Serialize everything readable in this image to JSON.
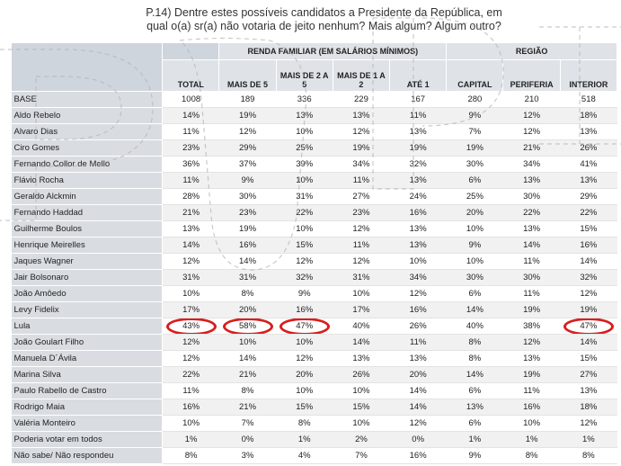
{
  "question": {
    "line1": "P.14) Dentre estes possíveis candidatos a Presidente da República, em",
    "line2": "qual o(a) sr(a) não votaria de jeito nenhum? Mais algum? Algum outro?"
  },
  "headers": {
    "group_income": "RENDA FAMILIAR (EM SALÁRIOS MÍNIMOS)",
    "group_region": "REGIÃO",
    "columns": [
      "TOTAL",
      "MAIS DE 5",
      "MAIS DE 2 A 5",
      "MAIS DE 1 A 2",
      "ATÉ 1",
      "CAPITAL",
      "PERIFERIA",
      "INTERIOR"
    ]
  },
  "rows": [
    {
      "label": "BASE",
      "values": [
        "1008",
        "189",
        "336",
        "229",
        "167",
        "280",
        "210",
        "518"
      ]
    },
    {
      "label": "Aldo Rebelo",
      "values": [
        "14%",
        "19%",
        "13%",
        "13%",
        "11%",
        "9%",
        "12%",
        "18%"
      ]
    },
    {
      "label": "Alvaro Dias",
      "values": [
        "11%",
        "12%",
        "10%",
        "12%",
        "13%",
        "7%",
        "12%",
        "13%"
      ]
    },
    {
      "label": "Ciro Gomes",
      "values": [
        "23%",
        "29%",
        "25%",
        "19%",
        "19%",
        "19%",
        "21%",
        "26%"
      ]
    },
    {
      "label": "Fernando Collor de Mello",
      "values": [
        "36%",
        "37%",
        "39%",
        "34%",
        "32%",
        "30%",
        "34%",
        "41%"
      ]
    },
    {
      "label": "Flávio Rocha",
      "values": [
        "11%",
        "9%",
        "10%",
        "11%",
        "13%",
        "6%",
        "13%",
        "13%"
      ]
    },
    {
      "label": "Geraldo Alckmin",
      "values": [
        "28%",
        "30%",
        "31%",
        "27%",
        "24%",
        "25%",
        "30%",
        "29%"
      ]
    },
    {
      "label": "Fernando Haddad",
      "values": [
        "21%",
        "23%",
        "22%",
        "23%",
        "16%",
        "20%",
        "22%",
        "22%"
      ]
    },
    {
      "label": "Guilherme Boulos",
      "values": [
        "13%",
        "19%",
        "10%",
        "12%",
        "13%",
        "10%",
        "13%",
        "15%"
      ]
    },
    {
      "label": "Henrique Meirelles",
      "values": [
        "14%",
        "16%",
        "15%",
        "11%",
        "13%",
        "9%",
        "14%",
        "16%"
      ]
    },
    {
      "label": "Jaques Wagner",
      "values": [
        "12%",
        "14%",
        "12%",
        "12%",
        "10%",
        "10%",
        "11%",
        "14%"
      ]
    },
    {
      "label": "Jair Bolsonaro",
      "values": [
        "31%",
        "31%",
        "32%",
        "31%",
        "34%",
        "30%",
        "30%",
        "32%"
      ]
    },
    {
      "label": "João Amôedo",
      "values": [
        "10%",
        "8%",
        "9%",
        "10%",
        "12%",
        "6%",
        "11%",
        "12%"
      ]
    },
    {
      "label": "Levy Fidelix",
      "values": [
        "17%",
        "20%",
        "16%",
        "17%",
        "16%",
        "14%",
        "19%",
        "19%"
      ]
    },
    {
      "label": "Lula",
      "values": [
        "43%",
        "58%",
        "47%",
        "40%",
        "26%",
        "40%",
        "38%",
        "47%"
      ],
      "circled": [
        0,
        1,
        2,
        7
      ]
    },
    {
      "label": "João Goulart Filho",
      "values": [
        "12%",
        "10%",
        "10%",
        "14%",
        "11%",
        "8%",
        "12%",
        "14%"
      ]
    },
    {
      "label": "Manuela D´Ávila",
      "values": [
        "12%",
        "14%",
        "12%",
        "13%",
        "13%",
        "8%",
        "13%",
        "15%"
      ]
    },
    {
      "label": "Marina Silva",
      "values": [
        "22%",
        "21%",
        "20%",
        "26%",
        "20%",
        "14%",
        "19%",
        "27%"
      ]
    },
    {
      "label": "Paulo Rabello de Castro",
      "values": [
        "11%",
        "8%",
        "10%",
        "10%",
        "14%",
        "6%",
        "11%",
        "13%"
      ]
    },
    {
      "label": "Rodrigo Maia",
      "values": [
        "16%",
        "21%",
        "15%",
        "15%",
        "14%",
        "13%",
        "16%",
        "18%"
      ]
    },
    {
      "label": "Valéria Monteiro",
      "values": [
        "10%",
        "7%",
        "8%",
        "10%",
        "12%",
        "6%",
        "10%",
        "12%"
      ]
    },
    {
      "label": "Poderia votar em todos",
      "values": [
        "1%",
        "0%",
        "1%",
        "2%",
        "0%",
        "1%",
        "1%",
        "1%"
      ]
    },
    {
      "label": "Não sabe/ Não respondeu",
      "values": [
        "8%",
        "3%",
        "4%",
        "7%",
        "16%",
        "9%",
        "8%",
        "8%"
      ]
    }
  ],
  "colors": {
    "highlight_circle": "#d81e1e",
    "header_bg": "#dfe3e8",
    "label_bg": "#d9dde2"
  }
}
